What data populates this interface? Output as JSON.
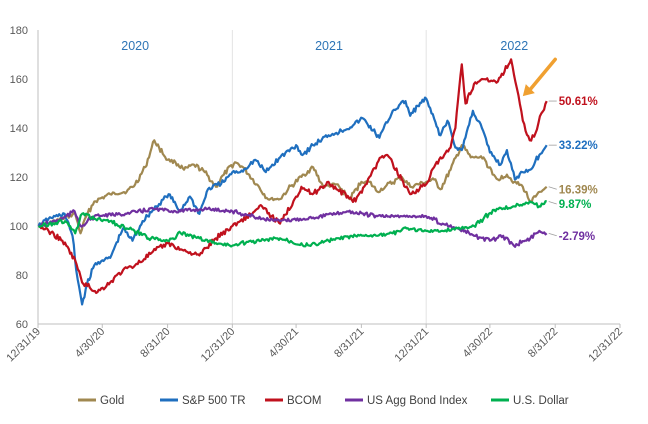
{
  "chart_data": {
    "type": "line",
    "title": "",
    "xlabel": "",
    "ylabel": "",
    "ylim": [
      60,
      180
    ],
    "yticks": [
      60,
      80,
      100,
      120,
      140,
      160,
      180
    ],
    "xlim": [
      "2019-12-31",
      "2022-12-31"
    ],
    "xticks": [
      "12/31/19",
      "4/30/20",
      "8/31/20",
      "12/31/20",
      "4/30/21",
      "8/31/21",
      "12/31/21",
      "4/30/22",
      "8/31/22",
      "12/31/22"
    ],
    "year_labels": [
      {
        "text": "2020",
        "x": "2020-07-01"
      },
      {
        "text": "2021",
        "x": "2021-07-01"
      },
      {
        "text": "2022",
        "x": "2022-06-15"
      }
    ],
    "year_dividers": [
      "2020-12-31",
      "2021-12-31"
    ],
    "grid": "none",
    "legend_position": "bottom",
    "annotation_arrow": {
      "color": "#f0a030",
      "from": [
        "2022-08-31",
        168
      ],
      "to": [
        "2022-07-01",
        153
      ]
    },
    "series": [
      {
        "name": "Gold",
        "color": "#a08850",
        "end_label": "16.39%",
        "end_label_y": 115,
        "points": [
          [
            "2020-01-01",
            100
          ],
          [
            "2020-01-20",
            101
          ],
          [
            "2020-02-15",
            103
          ],
          [
            "2020-03-10",
            105
          ],
          [
            "2020-03-20",
            97
          ],
          [
            "2020-03-31",
            104
          ],
          [
            "2020-04-15",
            110
          ],
          [
            "2020-05-15",
            113
          ],
          [
            "2020-06-15",
            114
          ],
          [
            "2020-07-01",
            117
          ],
          [
            "2020-07-20",
            124
          ],
          [
            "2020-08-06",
            135
          ],
          [
            "2020-08-15",
            132
          ],
          [
            "2020-08-31",
            127
          ],
          [
            "2020-09-15",
            126
          ],
          [
            "2020-10-01",
            123
          ],
          [
            "2020-10-20",
            125
          ],
          [
            "2020-11-09",
            122
          ],
          [
            "2020-11-30",
            116
          ],
          [
            "2020-12-15",
            121
          ],
          [
            "2021-01-05",
            126
          ],
          [
            "2021-01-20",
            124
          ],
          [
            "2021-02-15",
            117
          ],
          [
            "2021-03-08",
            111
          ],
          [
            "2021-03-31",
            111
          ],
          [
            "2021-04-15",
            115
          ],
          [
            "2021-05-15",
            121
          ],
          [
            "2021-06-01",
            124
          ],
          [
            "2021-06-20",
            116
          ],
          [
            "2021-07-15",
            117
          ],
          [
            "2021-08-09",
            111
          ],
          [
            "2021-08-31",
            118
          ],
          [
            "2021-09-15",
            118
          ],
          [
            "2021-09-30",
            114
          ],
          [
            "2021-10-15",
            116
          ],
          [
            "2021-11-15",
            120
          ],
          [
            "2021-12-01",
            116
          ],
          [
            "2021-12-31",
            118
          ],
          [
            "2022-01-15",
            119
          ],
          [
            "2022-01-27",
            115
          ],
          [
            "2022-02-15",
            123
          ],
          [
            "2022-03-08",
            133
          ],
          [
            "2022-03-25",
            128
          ],
          [
            "2022-04-18",
            128
          ],
          [
            "2022-05-05",
            121
          ],
          [
            "2022-05-15",
            119
          ],
          [
            "2022-06-01",
            121
          ],
          [
            "2022-06-15",
            118
          ],
          [
            "2022-07-01",
            116
          ],
          [
            "2022-07-15",
            110
          ],
          [
            "2022-07-25",
            112
          ],
          [
            "2022-08-05",
            114
          ],
          [
            "2022-08-15",
            116
          ]
        ]
      },
      {
        "name": "S&P 500 TR",
        "color": "#1f6fbf",
        "end_label": "33.22%",
        "end_label_y": 133,
        "points": [
          [
            "2020-01-01",
            100
          ],
          [
            "2020-01-20",
            103
          ],
          [
            "2020-02-19",
            105
          ],
          [
            "2020-03-05",
            96
          ],
          [
            "2020-03-12",
            82
          ],
          [
            "2020-03-23",
            68
          ],
          [
            "2020-04-01",
            76
          ],
          [
            "2020-04-15",
            84
          ],
          [
            "2020-04-30",
            86
          ],
          [
            "2020-05-15",
            87
          ],
          [
            "2020-06-08",
            99
          ],
          [
            "2020-06-26",
            94
          ],
          [
            "2020-07-15",
            102
          ],
          [
            "2020-08-10",
            108
          ],
          [
            "2020-09-02",
            113
          ],
          [
            "2020-09-23",
            106
          ],
          [
            "2020-10-12",
            112
          ],
          [
            "2020-10-30",
            105
          ],
          [
            "2020-11-15",
            115
          ],
          [
            "2020-12-15",
            118
          ],
          [
            "2020-12-31",
            122
          ],
          [
            "2021-01-15",
            122
          ],
          [
            "2021-02-12",
            127
          ],
          [
            "2021-03-04",
            122
          ],
          [
            "2021-03-31",
            128
          ],
          [
            "2021-04-30",
            133
          ],
          [
            "2021-05-12",
            129
          ],
          [
            "2021-06-01",
            133
          ],
          [
            "2021-06-30",
            137
          ],
          [
            "2021-07-15",
            138
          ],
          [
            "2021-08-15",
            141
          ],
          [
            "2021-09-02",
            144
          ],
          [
            "2021-10-04",
            136
          ],
          [
            "2021-10-29",
            147
          ],
          [
            "2021-11-22",
            151
          ],
          [
            "2021-12-01",
            145
          ],
          [
            "2021-12-15",
            149
          ],
          [
            "2021-12-31",
            152
          ],
          [
            "2022-01-10",
            146
          ],
          [
            "2022-01-27",
            137
          ],
          [
            "2022-02-09",
            143
          ],
          [
            "2022-02-24",
            132
          ],
          [
            "2022-03-08",
            131
          ],
          [
            "2022-03-29",
            147
          ],
          [
            "2022-04-15",
            140
          ],
          [
            "2022-04-30",
            130
          ],
          [
            "2022-05-20",
            125
          ],
          [
            "2022-06-01",
            131
          ],
          [
            "2022-06-16",
            119
          ],
          [
            "2022-06-30",
            122
          ],
          [
            "2022-07-15",
            123
          ],
          [
            "2022-08-01",
            129
          ],
          [
            "2022-08-15",
            133
          ]
        ]
      },
      {
        "name": "BCOM",
        "color": "#c0111d",
        "end_label": "50.61%",
        "end_label_y": 151,
        "points": [
          [
            "2020-01-01",
            100
          ],
          [
            "2020-01-20",
            98
          ],
          [
            "2020-02-15",
            94
          ],
          [
            "2020-03-10",
            86
          ],
          [
            "2020-03-23",
            77
          ],
          [
            "2020-04-21",
            73
          ],
          [
            "2020-05-15",
            77
          ],
          [
            "2020-06-08",
            82
          ],
          [
            "2020-07-01",
            84
          ],
          [
            "2020-08-01",
            89
          ],
          [
            "2020-08-31",
            93
          ],
          [
            "2020-09-30",
            90
          ],
          [
            "2020-10-30",
            88
          ],
          [
            "2020-11-30",
            95
          ],
          [
            "2020-12-31",
            100
          ],
          [
            "2021-01-15",
            102
          ],
          [
            "2021-02-25",
            108
          ],
          [
            "2021-03-15",
            104
          ],
          [
            "2021-03-31",
            101
          ],
          [
            "2021-04-30",
            112
          ],
          [
            "2021-05-10",
            116
          ],
          [
            "2021-05-31",
            113
          ],
          [
            "2021-06-30",
            118
          ],
          [
            "2021-07-15",
            115
          ],
          [
            "2021-08-20",
            110
          ],
          [
            "2021-09-15",
            120
          ],
          [
            "2021-10-07",
            128
          ],
          [
            "2021-10-19",
            129
          ],
          [
            "2021-11-15",
            119
          ],
          [
            "2021-12-01",
            113
          ],
          [
            "2021-12-31",
            117
          ],
          [
            "2022-01-15",
            124
          ],
          [
            "2022-02-15",
            132
          ],
          [
            "2022-02-24",
            140
          ],
          [
            "2022-03-08",
            166
          ],
          [
            "2022-03-15",
            150
          ],
          [
            "2022-03-31",
            158
          ],
          [
            "2022-04-15",
            160
          ],
          [
            "2022-05-15",
            159
          ],
          [
            "2022-06-09",
            168
          ],
          [
            "2022-06-20",
            156
          ],
          [
            "2022-07-01",
            143
          ],
          [
            "2022-07-14",
            135
          ],
          [
            "2022-07-25",
            138
          ],
          [
            "2022-08-05",
            146
          ],
          [
            "2022-08-15",
            151
          ]
        ]
      },
      {
        "name": "US Agg Bond Index",
        "color": "#7030a0",
        "end_label": "-2.79%",
        "end_label_y": 96,
        "points": [
          [
            "2020-01-01",
            100
          ],
          [
            "2020-02-15",
            103
          ],
          [
            "2020-03-09",
            106
          ],
          [
            "2020-03-20",
            100
          ],
          [
            "2020-04-15",
            104
          ],
          [
            "2020-06-15",
            105
          ],
          [
            "2020-08-04",
            107
          ],
          [
            "2020-09-15",
            106
          ],
          [
            "2020-11-15",
            107
          ],
          [
            "2020-12-31",
            106
          ],
          [
            "2021-02-25",
            103
          ],
          [
            "2021-03-31",
            102
          ],
          [
            "2021-05-15",
            103
          ],
          [
            "2021-07-15",
            105
          ],
          [
            "2021-08-04",
            106
          ],
          [
            "2021-09-30",
            104
          ],
          [
            "2021-11-15",
            104
          ],
          [
            "2021-12-31",
            104
          ],
          [
            "2022-01-31",
            101
          ],
          [
            "2022-02-28",
            99
          ],
          [
            "2022-03-31",
            96
          ],
          [
            "2022-04-30",
            94
          ],
          [
            "2022-05-25",
            96
          ],
          [
            "2022-06-14",
            92
          ],
          [
            "2022-07-15",
            95
          ],
          [
            "2022-08-01",
            98
          ],
          [
            "2022-08-15",
            97
          ]
        ]
      },
      {
        "name": "U.S. Dollar",
        "color": "#00b050",
        "end_label": "9.87%",
        "end_label_y": 109,
        "points": [
          [
            "2020-01-01",
            100
          ],
          [
            "2020-02-20",
            102
          ],
          [
            "2020-03-10",
            97
          ],
          [
            "2020-03-23",
            105
          ],
          [
            "2020-04-15",
            103
          ],
          [
            "2020-05-15",
            102
          ],
          [
            "2020-06-15",
            99
          ],
          [
            "2020-07-31",
            95
          ],
          [
            "2020-08-31",
            94
          ],
          [
            "2020-09-25",
            97
          ],
          [
            "2020-10-30",
            95
          ],
          [
            "2020-11-30",
            93
          ],
          [
            "2020-12-31",
            92
          ],
          [
            "2021-01-15",
            93
          ],
          [
            "2021-03-31",
            95
          ],
          [
            "2021-05-25",
            92
          ],
          [
            "2021-06-30",
            94
          ],
          [
            "2021-08-20",
            96
          ],
          [
            "2021-09-30",
            96
          ],
          [
            "2021-10-29",
            97
          ],
          [
            "2021-11-24",
            99
          ],
          [
            "2021-12-31",
            98
          ],
          [
            "2022-01-31",
            98
          ],
          [
            "2022-02-28",
            99
          ],
          [
            "2022-03-31",
            100
          ],
          [
            "2022-04-28",
            105
          ],
          [
            "2022-05-13",
            107
          ],
          [
            "2022-06-15",
            108
          ],
          [
            "2022-07-14",
            110
          ],
          [
            "2022-08-01",
            108
          ],
          [
            "2022-08-15",
            110
          ]
        ]
      }
    ]
  }
}
